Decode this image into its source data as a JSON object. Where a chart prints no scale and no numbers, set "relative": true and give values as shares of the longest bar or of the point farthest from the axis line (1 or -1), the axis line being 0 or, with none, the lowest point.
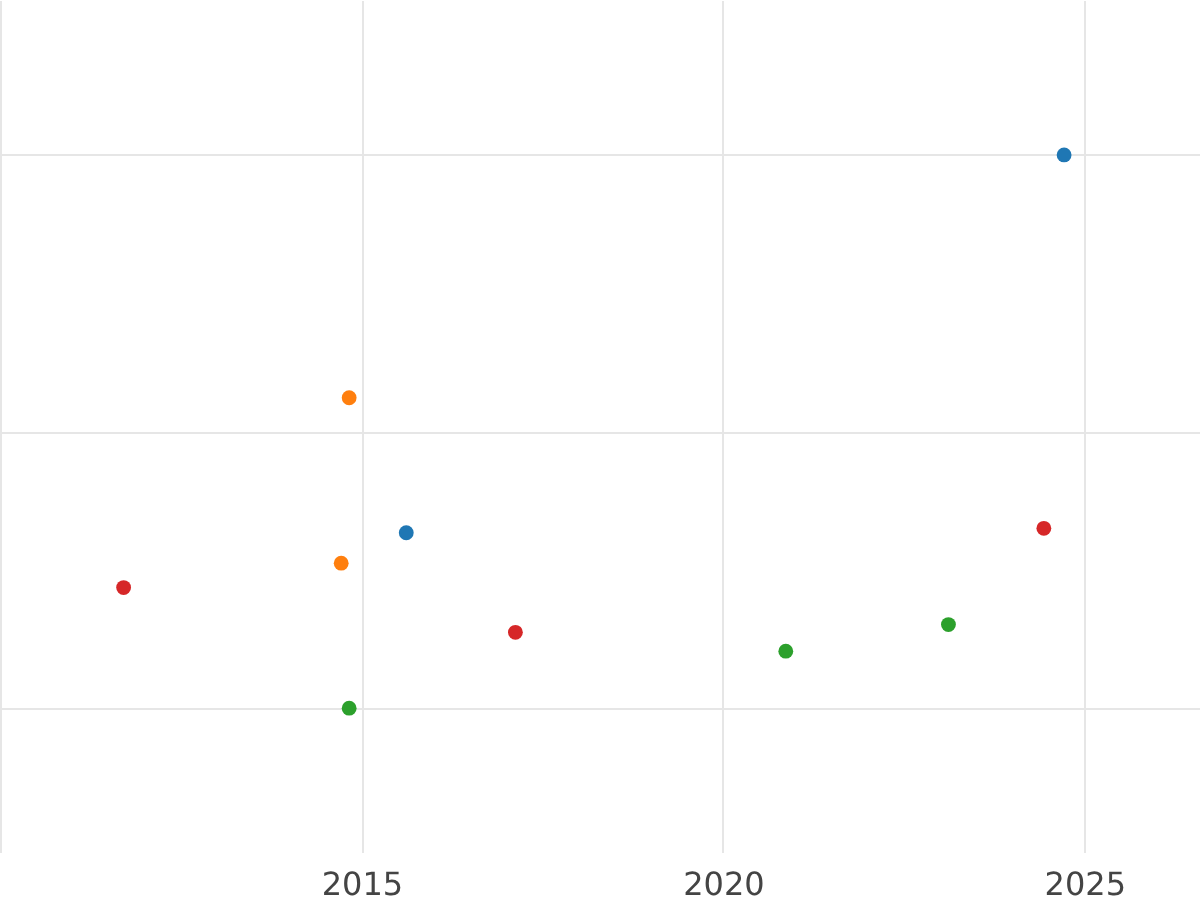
{
  "chart_data": {
    "type": "scatter",
    "relative": true,
    "grid": true,
    "tick_labels": "x",
    "marker": "circle",
    "legend": false,
    "xlim": [
      2010,
      2026.6
    ],
    "xticks": [
      {
        "value": 2010,
        "label": null
      },
      2015,
      2020,
      2025
    ],
    "series": [
      {
        "color": "#1f77b4",
        "x": [
          2024.72,
          2015.62
        ],
        "values": [
          1,
          0.317
        ]
      },
      {
        "color": "#ff7f0e",
        "x": [
          2014.83,
          2014.72
        ],
        "values": [
          0.561,
          0.262
        ]
      },
      {
        "color": "#2ca02c",
        "x": [
          2014.83,
          2020.87,
          2023.12
        ],
        "values": [
          0,
          0.103,
          0.151
        ]
      },
      {
        "color": "#d62728",
        "x": [
          2011.71,
          2017.13,
          2024.44
        ],
        "values": [
          0.218,
          0.137,
          0.325
        ]
      }
    ]
  }
}
